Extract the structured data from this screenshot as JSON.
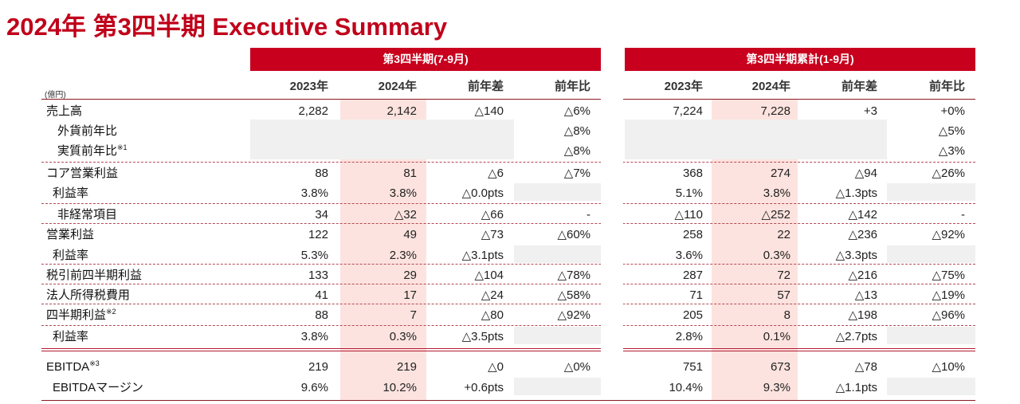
{
  "title": "2024年 第3四半期 Executive Summary",
  "unit_label": "(億円)",
  "groups": [
    {
      "label": "第3四半期(7-9月)"
    },
    {
      "label": "第3四半期累計(1-9月)"
    }
  ],
  "column_headers": [
    "2023年",
    "2024年",
    "前年差",
    "前年比",
    "2023年",
    "2024年",
    "前年差",
    "前年比"
  ],
  "rows": [
    {
      "label": "売上高",
      "indent": 0,
      "sup": "",
      "cells": [
        "2,282",
        "2,142",
        "△140",
        "△6%",
        "7,224",
        "7,228",
        "+3",
        "+0%"
      ]
    },
    {
      "label": "外貨前年比",
      "indent": 1,
      "sup": "",
      "cells": [
        "",
        "",
        "",
        "△8%",
        "",
        "",
        "",
        "△5%"
      ]
    },
    {
      "label": "実質前年比",
      "indent": 1,
      "sup": "※1",
      "cells": [
        "",
        "",
        "",
        "△8%",
        "",
        "",
        "",
        "△3%"
      ]
    },
    {
      "label": "コア営業利益",
      "indent": 0,
      "sup": "",
      "cells": [
        "88",
        "81",
        "△6",
        "△7%",
        "368",
        "274",
        "△94",
        "△26%"
      ]
    },
    {
      "label": "利益率",
      "indent": 2,
      "sup": "",
      "cells": [
        "3.8%",
        "3.8%",
        "△0.0pts",
        "",
        "5.1%",
        "3.8%",
        "△1.3pts",
        ""
      ]
    },
    {
      "label": "非経常項目",
      "indent": 1,
      "sup": "",
      "cells": [
        "34",
        "△32",
        "△66",
        "-",
        "△110",
        "△252",
        "△142",
        "-"
      ]
    },
    {
      "label": "営業利益",
      "indent": 0,
      "sup": "",
      "cells": [
        "122",
        "49",
        "△73",
        "△60%",
        "258",
        "22",
        "△236",
        "△92%"
      ]
    },
    {
      "label": "利益率",
      "indent": 2,
      "sup": "",
      "cells": [
        "5.3%",
        "2.3%",
        "△3.1pts",
        "",
        "3.6%",
        "0.3%",
        "△3.3pts",
        ""
      ]
    },
    {
      "label": "税引前四半期利益",
      "indent": 0,
      "sup": "",
      "cells": [
        "133",
        "29",
        "△104",
        "△78%",
        "287",
        "72",
        "△216",
        "△75%"
      ]
    },
    {
      "label": "法人所得税費用",
      "indent": 0,
      "sup": "",
      "cells": [
        "41",
        "17",
        "△24",
        "△58%",
        "71",
        "57",
        "△13",
        "△19%"
      ]
    },
    {
      "label": "四半期利益",
      "indent": 0,
      "sup": "※2",
      "cells": [
        "88",
        "7",
        "△80",
        "△92%",
        "205",
        "8",
        "△198",
        "△96%"
      ]
    },
    {
      "label": "利益率",
      "indent": 2,
      "sup": "",
      "cells": [
        "3.8%",
        "0.3%",
        "△3.5pts",
        "",
        "2.8%",
        "0.1%",
        "△2.7pts",
        ""
      ]
    },
    {
      "label": "EBITDA",
      "indent": 0,
      "sup": "※3",
      "cells": [
        "219",
        "219",
        "△0",
        "△0%",
        "751",
        "673",
        "△78",
        "△10%"
      ]
    },
    {
      "label": "EBITDAマージン",
      "indent": 2,
      "sup": "",
      "cells": [
        "9.6%",
        "10.2%",
        "+0.6pts",
        "",
        "10.4%",
        "9.3%",
        "△1.1pts",
        ""
      ]
    }
  ],
  "colors": {
    "accent": "#c8001e",
    "highlight": "#fde3df",
    "grey_cell": "#f0f0f0"
  }
}
